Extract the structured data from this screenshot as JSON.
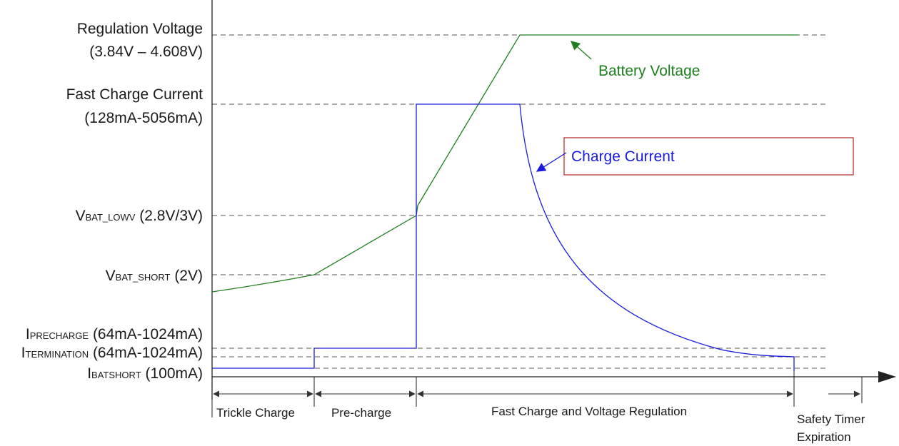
{
  "colors": {
    "battery_voltage": "#1f7f1f",
    "charge_current": "#1a1adf",
    "callout_border": "#b22222",
    "axis": "#222222",
    "dashed": "#555555"
  },
  "levels": {
    "regulation_voltage": {
      "line1": "Regulation Voltage",
      "line2": "(3.84V – 4.608V)"
    },
    "fast_charge_current": {
      "line1": "Fast Charge Current",
      "line2": "(128mA-5056mA)"
    },
    "vbat_lowv": {
      "main": "V",
      "sub": "BAT_LOWV",
      "rest": " (2.8V/3V)"
    },
    "vbat_short": {
      "main": "V",
      "sub": "BAT_SHORT",
      "rest": " (2V)"
    },
    "iprecharge": {
      "main": "I",
      "sub": "PRECHARGE",
      "rest": " (64mA-1024mA)"
    },
    "itermination": {
      "main": "I",
      "sub": "TERMINATION",
      "rest": " (64mA-1024mA)"
    },
    "ibatshort": {
      "main": "I",
      "sub": "BATSHORT",
      "rest": " (100mA)"
    }
  },
  "annotations": {
    "battery_voltage": "Battery Voltage",
    "charge_current": "Charge Current"
  },
  "phases": {
    "trickle": "Trickle Charge",
    "precharge": "Pre-charge",
    "fast": "Fast Charge and Voltage Regulation",
    "safety_line1": "Safety Timer",
    "safety_line2": "Expiration"
  }
}
